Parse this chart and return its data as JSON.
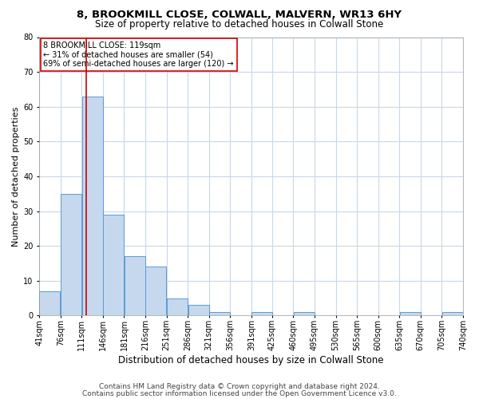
{
  "title1": "8, BROOKMILL CLOSE, COLWALL, MALVERN, WR13 6HY",
  "title2": "Size of property relative to detached houses in Colwall Stone",
  "xlabel": "Distribution of detached houses by size in Colwall Stone",
  "ylabel": "Number of detached properties",
  "bins": [
    41,
    76,
    111,
    146,
    181,
    216,
    251,
    286,
    321,
    356,
    391,
    425,
    460,
    495,
    530,
    565,
    600,
    635,
    670,
    705,
    740
  ],
  "bar_labels": [
    "41sqm",
    "76sqm",
    "111sqm",
    "146sqm",
    "181sqm",
    "216sqm",
    "251sqm",
    "286sqm",
    "321sqm",
    "356sqm",
    "391sqm",
    "425sqm",
    "460sqm",
    "495sqm",
    "530sqm",
    "565sqm",
    "600sqm",
    "635sqm",
    "670sqm",
    "705sqm",
    "740sqm"
  ],
  "values": [
    7,
    35,
    63,
    29,
    17,
    14,
    5,
    3,
    1,
    0,
    1,
    0,
    1,
    0,
    0,
    0,
    0,
    1,
    0,
    1
  ],
  "bar_color": "#c5d8ed",
  "bar_edge_color": "#5b9bd5",
  "reference_line_x": 119,
  "ylim": [
    0,
    80
  ],
  "yticks": [
    0,
    10,
    20,
    30,
    40,
    50,
    60,
    70,
    80
  ],
  "annotation_box_text": "8 BROOKMILL CLOSE: 119sqm\n← 31% of detached houses are smaller (54)\n69% of semi-detached houses are larger (120) →",
  "annotation_box_color": "#ffffff",
  "annotation_box_edge_color": "#cc0000",
  "red_line_color": "#cc0000",
  "footnote1": "Contains HM Land Registry data © Crown copyright and database right 2024.",
  "footnote2": "Contains public sector information licensed under the Open Government Licence v3.0.",
  "background_color": "#ffffff",
  "grid_color": "#c8d8e8",
  "title1_fontsize": 9.5,
  "title2_fontsize": 8.5,
  "xlabel_fontsize": 8.5,
  "ylabel_fontsize": 8,
  "tick_fontsize": 7,
  "footnote_fontsize": 6.5,
  "ann_fontsize": 7
}
